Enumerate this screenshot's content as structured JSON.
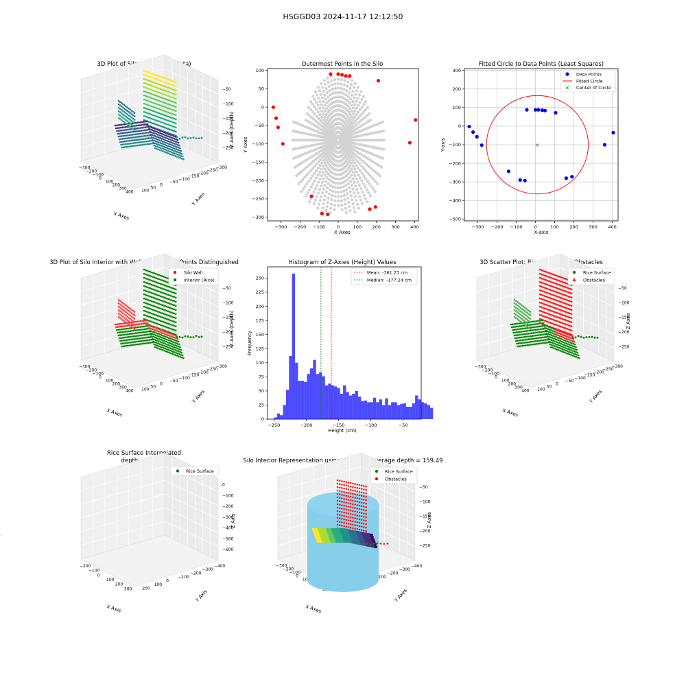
{
  "figure": {
    "title": "HSGGD03 2024-11-17 12:12:50"
  },
  "chart_data": [
    {
      "type": "scatter3d",
      "title": "3D Plot of Silo Interior(row data)",
      "xlabel": "X Axes",
      "ylabel": "Y Axes",
      "zlabel": "Z Axes (Depth)",
      "xticks": [
        "−300",
        "−200",
        "−100",
        "0",
        "100",
        "200",
        "300",
        "400"
      ],
      "yticks": [
        "100",
        "50",
        "0",
        "−50",
        "−100",
        "−150",
        "−200",
        "−250",
        "−300"
      ],
      "zticks": [
        "−50",
        "−100",
        "−150",
        "−200",
        "−250"
      ],
      "colormap": "viridis"
    },
    {
      "type": "scatter",
      "title": "Outermost Points in the Silo",
      "xlabel": "X Axes",
      "ylabel": "Y Axes",
      "xlim": [
        -370,
        420
      ],
      "ylim": [
        -310,
        105
      ],
      "xticks": [
        -300,
        -200,
        -100,
        0,
        100,
        200,
        300,
        400
      ],
      "yticks": [
        100,
        50,
        0,
        -50,
        -100,
        -150,
        -200,
        -250,
        -300
      ],
      "series": [
        {
          "color": "#d3d3d3",
          "values": "dense radial grid of interior points"
        },
        {
          "color": "#ff0000",
          "x": [
            -340,
            -325,
            -315,
            -290,
            -140,
            -85,
            -55,
            -40,
            0,
            20,
            40,
            60,
            210,
            375,
            405,
            165,
            195
          ],
          "y": [
            0,
            -30,
            -55,
            -100,
            -243,
            -290,
            -292,
            90,
            90,
            88,
            85,
            85,
            72,
            -97,
            -35,
            -278,
            -272
          ]
        }
      ]
    },
    {
      "type": "scatter",
      "title": "Fitted Circle to Data Points (Least Squares)",
      "xlabel": "X-axis",
      "ylabel": "Y-axis",
      "xlim": [
        -370,
        430
      ],
      "ylim": [
        -510,
        310
      ],
      "xticks": [
        -300,
        -200,
        -100,
        0,
        100,
        200,
        300,
        400
      ],
      "yticks": [
        300,
        200,
        100,
        0,
        -100,
        -200,
        -300,
        -400,
        -500
      ],
      "grid": true,
      "legend": [
        "Data Points",
        "Fitted Circle",
        "Center of Circle"
      ],
      "legend_position": "upper-right",
      "points": {
        "x": [
          -345,
          -325,
          -305,
          -280,
          -140,
          -80,
          -55,
          -45,
          0,
          15,
          35,
          50,
          105,
          160,
          190,
          360,
          405
        ],
        "y": [
          -2,
          -32,
          -57,
          -102,
          -243,
          -290,
          -293,
          88,
          88,
          88,
          86,
          84,
          72,
          -280,
          -272,
          -100,
          -35
        ]
      },
      "circle": {
        "cx": 10,
        "cy": -100,
        "r": 265,
        "color": "#ff0000"
      },
      "center": {
        "x": 10,
        "y": -100,
        "color": "#008000"
      }
    },
    {
      "type": "scatter3d",
      "title": "3D Plot of Silo Interior with Wall and Interior Points Distinguished",
      "xlabel": "X Axes",
      "ylabel": "Y Axes",
      "zlabel": "Z Axes (Depth)",
      "legend": [
        "Silo Wall",
        "Interior (Rice)"
      ],
      "colors": [
        "#ff0000",
        "#008000"
      ],
      "xticks": [
        "−300",
        "−200",
        "−100",
        "0",
        "100",
        "200",
        "300",
        "400"
      ],
      "yticks": [
        "100",
        "50",
        "0",
        "−50",
        "−100",
        "−150",
        "−200",
        "−250",
        "−300"
      ],
      "zticks": [
        "−50",
        "−100",
        "−150",
        "−200",
        "−250"
      ]
    },
    {
      "type": "bar",
      "title": "Histogram of Z-Axies (Height) Values",
      "xlabel": "Height (cm)",
      "ylabel": "Frequency",
      "xlim": [
        -260,
        -22
      ],
      "ylim": [
        0,
        270
      ],
      "xticks": [
        -250,
        -200,
        -150,
        -100,
        -50
      ],
      "yticks": [
        0,
        25,
        50,
        75,
        100,
        125,
        150,
        175,
        200,
        225,
        250
      ],
      "bin_start": -250,
      "bin_width": 4.65,
      "values": [
        3,
        10,
        7,
        25,
        52,
        112,
        258,
        100,
        68,
        68,
        66,
        80,
        90,
        105,
        80,
        83,
        76,
        60,
        63,
        60,
        58,
        55,
        45,
        60,
        48,
        42,
        45,
        50,
        40,
        32,
        33,
        30,
        30,
        38,
        30,
        35,
        25,
        37,
        25,
        30,
        30,
        25,
        27,
        28,
        22,
        22,
        28,
        42,
        35,
        30,
        28,
        25,
        20
      ],
      "bar_color": "#0000ff",
      "legend": [
        "Mean: -161.23 cm",
        "Median: -177.24 cm"
      ],
      "mean": -161.23,
      "median": -177.24
    },
    {
      "type": "scatter3d",
      "title": "3D Scatter Plot: Rice Surface vs Obstacles",
      "xlabel": "X Axes",
      "ylabel": "Y Axes",
      "zlabel": "Z Axes",
      "legend": [
        "Rice Surface",
        "Obstacles"
      ],
      "colors": [
        "#008000",
        "#ff0000"
      ],
      "xticks": [
        "−300",
        "−200",
        "−100",
        "0",
        "100",
        "200",
        "300",
        "400"
      ],
      "yticks": [
        "100",
        "50",
        "0",
        "−50",
        "−100",
        "−150",
        "−200",
        "−250",
        "−300"
      ],
      "zticks": [
        "−50",
        "−100",
        "−150",
        "−200",
        "−250"
      ]
    },
    {
      "type": "surface3d",
      "title": "Rice Surface Interpolated",
      "subtitle": "depth = 159.49",
      "xlabel": "X Axis",
      "ylabel": "Y Axis",
      "zlabel": "Z Axis",
      "legend": [
        "Rice Surface"
      ],
      "xticks": [
        "−200",
        "−100",
        "0",
        "100",
        "200",
        "300"
      ],
      "yticks": [
        "200",
        "100",
        "0",
        "−100",
        "−200",
        "−300",
        "−400"
      ],
      "zticks": [
        "0",
        "−100",
        "−200",
        "−300",
        "−400",
        "−500",
        "−600"
      ]
    },
    {
      "type": "surface3d",
      "title": "Silo Interior Representation using weighted average depth = 159.49",
      "xlabel": "X Axes",
      "ylabel": "Y Axes",
      "zlabel": "Z Axes",
      "legend": [
        "Rice Surface",
        "Obstacles"
      ],
      "xticks": [
        "−300",
        "−200",
        "−100",
        "0",
        "100",
        "200",
        "300",
        "400"
      ],
      "yticks": [
        "200",
        "100",
        "0",
        "−100",
        "−200",
        "−300",
        "−400"
      ],
      "zticks": [
        "−50",
        "−100",
        "−150",
        "−200",
        "−250"
      ]
    }
  ]
}
